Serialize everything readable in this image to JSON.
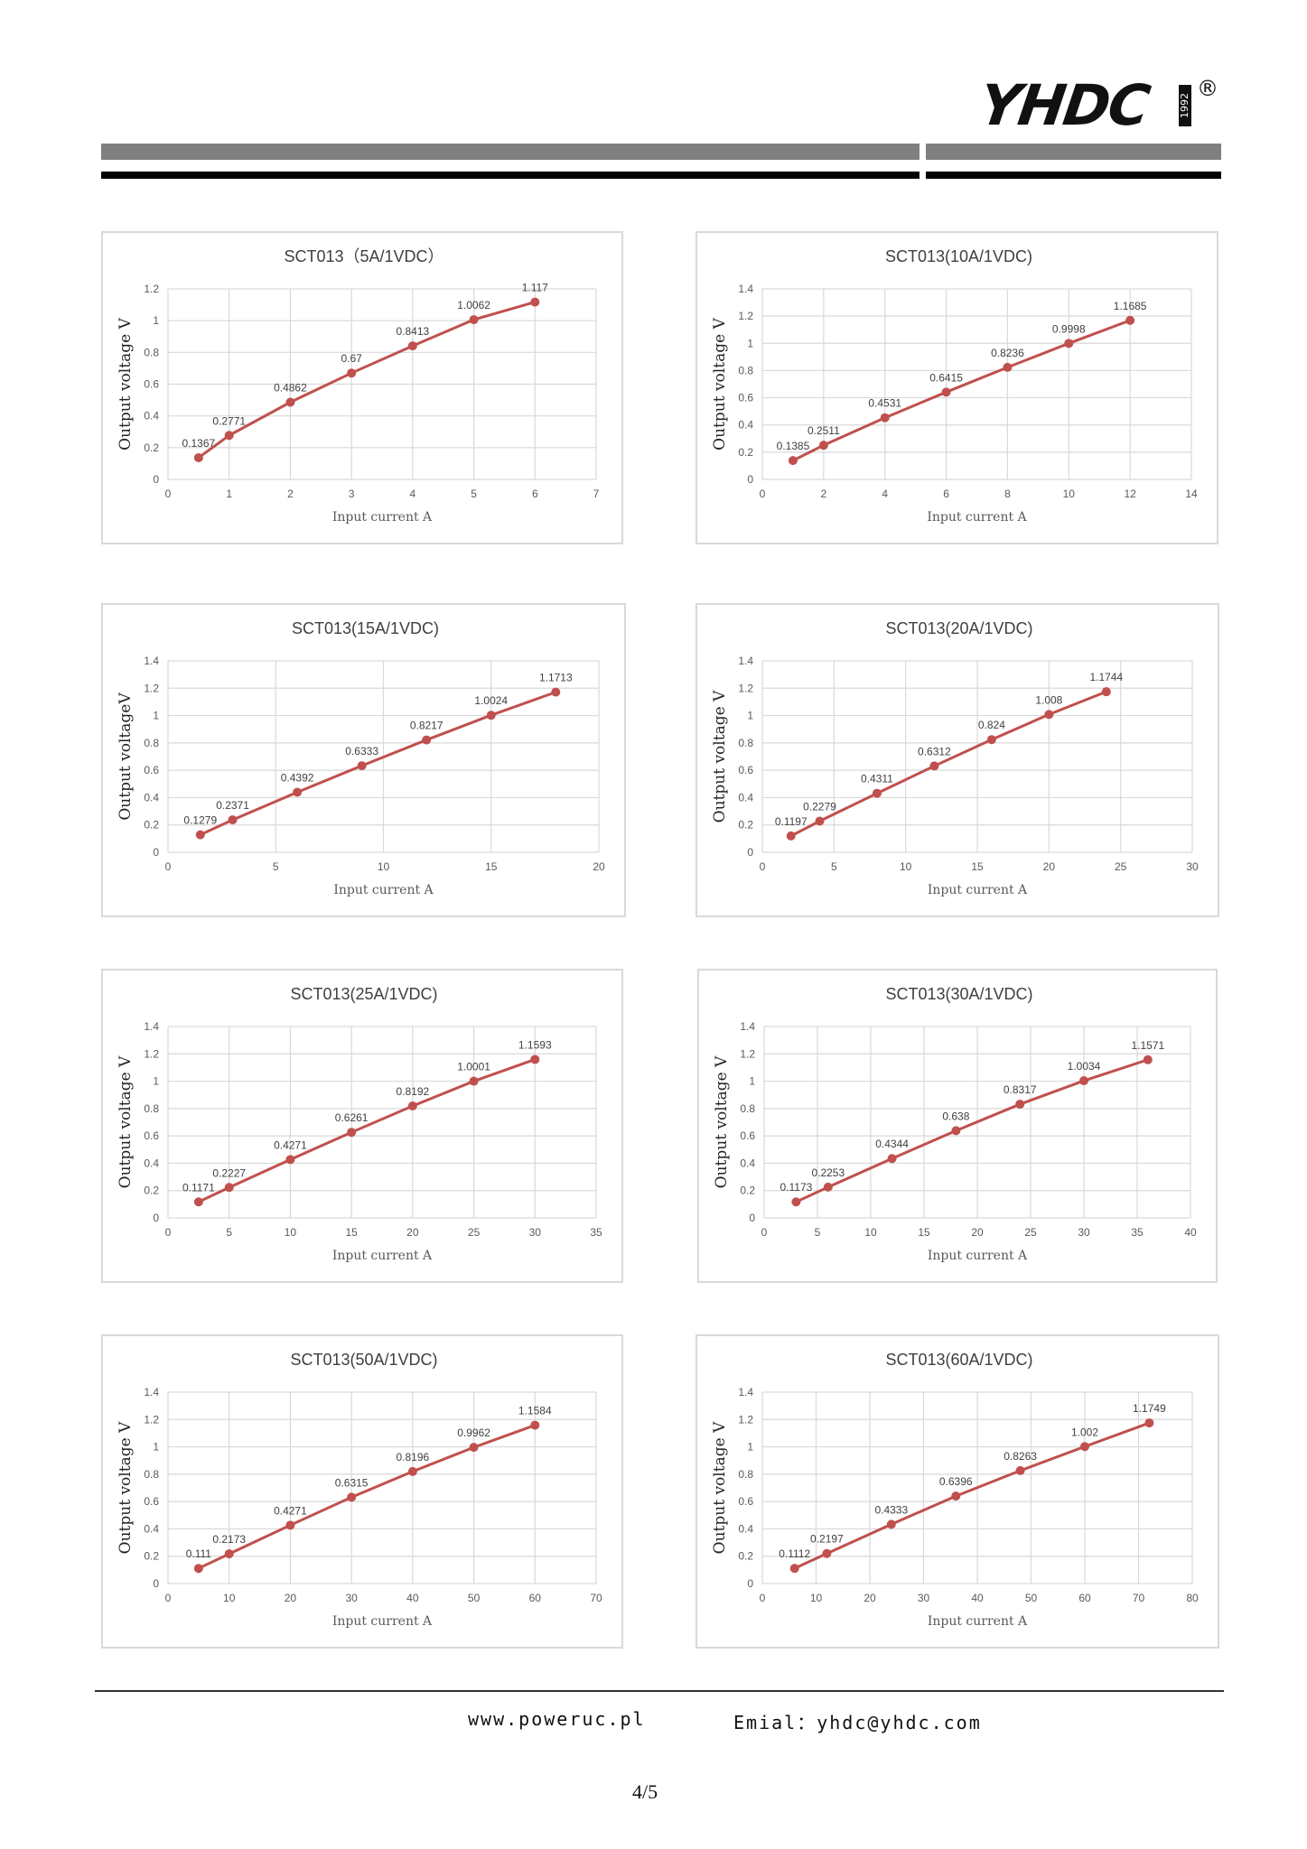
{
  "header": {
    "logo_text": "YHDC",
    "logo_year": "1992",
    "registered_mark": "®"
  },
  "footer": {
    "website": "www.poweruc.pl",
    "email": "Emial：yhdc@yhdc.com",
    "page_number": "4/5"
  },
  "colors": {
    "series": "#c0504d",
    "grid": "#d9d9d9",
    "header_bar": "#808080",
    "header_rule": "#000000"
  },
  "chart_data": [
    {
      "type": "line",
      "title": "SCT013（5A/1VDC）",
      "xlabel": "Input current A",
      "ylabel": "Output voltage V",
      "xlim": [
        0,
        7
      ],
      "xticks": [
        0,
        1,
        2,
        3,
        4,
        5,
        6,
        7
      ],
      "ylim": [
        0,
        1.2
      ],
      "yticks": [
        "0",
        "0.2",
        "0.4",
        "0.6",
        "0.8",
        "1",
        "1.2"
      ],
      "grid": true,
      "x": [
        0.5,
        1,
        2,
        3,
        4,
        5,
        6
      ],
      "values": [
        0.1367,
        0.2771,
        0.4862,
        0.67,
        0.8413,
        1.0062,
        1.117
      ],
      "labels": [
        "0.1367",
        "0.2771",
        "0.4862",
        "0.67",
        "0.8413",
        "1.0062",
        "1.117"
      ]
    },
    {
      "type": "line",
      "title": "SCT013(10A/1VDC)",
      "xlabel": "Input current A",
      "ylabel": "Output voltage V",
      "xlim": [
        0,
        14
      ],
      "xticks": [
        0,
        2,
        4,
        6,
        8,
        10,
        12,
        14
      ],
      "ylim": [
        0,
        1.4
      ],
      "yticks": [
        "0",
        "0.2",
        "0.4",
        "0.6",
        "0.8",
        "1",
        "1.2",
        "1.4"
      ],
      "grid": true,
      "x": [
        1,
        2,
        4,
        6,
        8,
        10,
        12
      ],
      "values": [
        0.1385,
        0.2511,
        0.4531,
        0.6415,
        0.8236,
        0.9998,
        1.1685
      ],
      "labels": [
        "0.1385",
        "0.2511",
        "0.4531",
        "0.6415",
        "0.8236",
        "0.9998",
        "1.1685"
      ]
    },
    {
      "type": "line",
      "title": "SCT013(15A/1VDC)",
      "xlabel": "Input current A",
      "ylabel": "Output voltageV",
      "xlim": [
        0,
        20
      ],
      "xticks": [
        0,
        5,
        10,
        15,
        20
      ],
      "ylim": [
        0,
        1.4
      ],
      "yticks": [
        "0",
        "0.2",
        "0.4",
        "0.6",
        "0.8",
        "1",
        "1.2",
        "1.4"
      ],
      "grid": true,
      "x": [
        1.5,
        3,
        6,
        9,
        12,
        15,
        18
      ],
      "values": [
        0.1279,
        0.2371,
        0.4392,
        0.6333,
        0.8217,
        1.0024,
        1.1713
      ],
      "labels": [
        "0.1279",
        "0.2371",
        "0.4392",
        "0.6333",
        "0.8217",
        "1.0024",
        "1.1713"
      ]
    },
    {
      "type": "line",
      "title": "SCT013(20A/1VDC)",
      "xlabel": "Input current A",
      "ylabel": "Output voltage V",
      "xlim": [
        0,
        30
      ],
      "xticks": [
        0,
        5,
        10,
        15,
        20,
        25,
        30
      ],
      "ylim": [
        0,
        1.4
      ],
      "yticks": [
        "0",
        "0.2",
        "0.4",
        "0.6",
        "0.8",
        "1",
        "1.2",
        "1.4"
      ],
      "grid": true,
      "x": [
        2,
        4,
        8,
        12,
        16,
        20,
        24
      ],
      "values": [
        0.1197,
        0.2279,
        0.4311,
        0.6312,
        0.824,
        1.008,
        1.1744
      ],
      "labels": [
        "0.1197",
        "0.2279",
        "0.4311",
        "0.6312",
        "0.824",
        "1.008",
        "1.1744"
      ]
    },
    {
      "type": "line",
      "title": "SCT013(25A/1VDC)",
      "xlabel": "Input current A",
      "ylabel": "Output voltage V",
      "xlim": [
        0,
        35
      ],
      "xticks": [
        0,
        5,
        10,
        15,
        20,
        25,
        30,
        35
      ],
      "ylim": [
        0,
        1.4
      ],
      "yticks": [
        "0",
        "0.2",
        "0.4",
        "0.6",
        "0.8",
        "1",
        "1.2",
        "1.4"
      ],
      "grid": true,
      "x": [
        2.5,
        5,
        10,
        15,
        20,
        25,
        30
      ],
      "values": [
        0.1171,
        0.2227,
        0.4271,
        0.6261,
        0.8192,
        1.0001,
        1.1593
      ],
      "labels": [
        "0.1171",
        "0.2227",
        "0.4271",
        "0.6261",
        "0.8192",
        "1.0001",
        "1.1593"
      ]
    },
    {
      "type": "line",
      "title": "SCT013(30A/1VDC)",
      "xlabel": "Input current A",
      "ylabel": "Output voltage V",
      "xlim": [
        0,
        40
      ],
      "xticks": [
        0,
        5,
        10,
        15,
        20,
        25,
        30,
        35,
        40
      ],
      "ylim": [
        0,
        1.4
      ],
      "yticks": [
        "0",
        "0.2",
        "0.4",
        "0.6",
        "0.8",
        "1",
        "1.2",
        "1.4"
      ],
      "grid": true,
      "x": [
        3,
        6,
        12,
        18,
        24,
        30,
        36
      ],
      "values": [
        0.1173,
        0.2253,
        0.4344,
        0.638,
        0.8317,
        1.0034,
        1.1571
      ],
      "labels": [
        "0.1173",
        "0.2253",
        "0.4344",
        "0.638",
        "0.8317",
        "1.0034",
        "1.1571"
      ]
    },
    {
      "type": "line",
      "title": "SCT013(50A/1VDC)",
      "xlabel": "Input current A",
      "ylabel": "Output voltage V",
      "xlim": [
        0,
        70
      ],
      "xticks": [
        0,
        10,
        20,
        30,
        40,
        50,
        60,
        70
      ],
      "ylim": [
        0,
        1.4
      ],
      "yticks": [
        "0",
        "0.2",
        "0.4",
        "0.6",
        "0.8",
        "1",
        "1.2",
        "1.4"
      ],
      "grid": true,
      "x": [
        5,
        10,
        20,
        30,
        40,
        50,
        60
      ],
      "values": [
        0.111,
        0.2173,
        0.4271,
        0.6315,
        0.8196,
        0.9962,
        1.1584
      ],
      "labels": [
        "0.111",
        "0.2173",
        "0.4271",
        "0.6315",
        "0.8196",
        "0.9962",
        "1.1584"
      ]
    },
    {
      "type": "line",
      "title": "SCT013(60A/1VDC)",
      "xlabel": "Input current A",
      "ylabel": "Output voltage V",
      "xlim": [
        0,
        80
      ],
      "xticks": [
        0,
        10,
        20,
        30,
        40,
        50,
        60,
        70,
        80
      ],
      "ylim": [
        0,
        1.4
      ],
      "yticks": [
        "0",
        "0.2",
        "0.4",
        "0.6",
        "0.8",
        "1",
        "1.2",
        "1.4"
      ],
      "grid": true,
      "x": [
        6,
        12,
        24,
        36,
        48,
        60,
        72
      ],
      "values": [
        0.1112,
        0.2197,
        0.4333,
        0.6396,
        0.8263,
        1.002,
        1.1749
      ],
      "labels": [
        "0.1112",
        "0.2197",
        "0.4333",
        "0.6396",
        "0.8263",
        "1.002",
        "1.1749"
      ]
    }
  ]
}
